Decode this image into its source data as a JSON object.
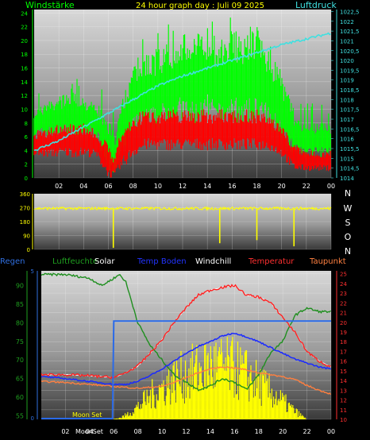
{
  "header": {
    "left_label": "Windstärke",
    "title": "24 hour graph day : Juli 09 2025",
    "right_label": "Luftdruck"
  },
  "legend": [
    {
      "label": "Regen",
      "color": "#2f6fe0"
    },
    {
      "label": "Luftfeuchte",
      "color": "#1f9f1f"
    },
    {
      "label": "Solar",
      "color": "#ffffff"
    },
    {
      "label": "Temp Boden",
      "color": "#2233ff"
    },
    {
      "label": "Windchill",
      "color": "#ffffff"
    },
    {
      "label": "Temperatur",
      "color": "#ff3030"
    },
    {
      "label": "Taupunkt",
      "color": "#ff8040"
    }
  ],
  "compass": [
    "N",
    "W",
    "S",
    "O",
    "N"
  ],
  "annotations": {
    "moon_set": "Moon Set",
    "moon_set_axis": "MoonSet"
  },
  "colors": {
    "gust": "#00ff00",
    "avg_wind": "#ff0000",
    "pressure": "#40e0e0",
    "direction": "#ffff00",
    "humidity": "#1f8f1f",
    "temp": "#ff2020",
    "dew": "#ff7f3f",
    "soil": "#1a2aff",
    "rain": "#2a6ae8",
    "windchill": "#ffffff",
    "solar": "#ffff00"
  },
  "chart_data": [
    {
      "type": "line",
      "title": "24 hour graph day : Juli 09 2025",
      "x_ticks": [
        "02",
        "04",
        "06",
        "08",
        "10",
        "12",
        "14",
        "16",
        "18",
        "20",
        "22",
        "00"
      ],
      "y_left_label": "Windstärke",
      "y_left_ticks": [
        "0",
        "2",
        "4",
        "6",
        "8",
        "10",
        "12",
        "14",
        "16",
        "18",
        "20",
        "22",
        "24"
      ],
      "y_left_range": [
        0,
        24.5
      ],
      "y_right_label": "Luftdruck",
      "y_right_ticks": [
        "1014",
        "1014,5",
        "1015",
        "1015,5",
        "1016",
        "1016,5",
        "1017",
        "1017,5",
        "1018",
        "1018,5",
        "1019",
        "1019,5",
        "1020",
        "1020,5",
        "1021",
        "1021,5",
        "1022",
        "1022,5"
      ],
      "y_right_range": [
        1014,
        1022.6
      ],
      "series": [
        {
          "name": "",
          "axis": "left",
          "color": "#00ff00",
          "kind": "bars",
          "hours": [
            0,
            1,
            2,
            3,
            4,
            5,
            6,
            6.5,
            7,
            8,
            9,
            10,
            11,
            12,
            13,
            14,
            15,
            16,
            17,
            18,
            19,
            20,
            21,
            22,
            23,
            24
          ],
          "low": [
            6,
            6,
            6,
            6,
            6,
            6,
            1,
            0,
            3,
            6,
            7,
            7,
            8,
            8,
            7,
            8,
            7,
            8,
            7,
            8,
            7,
            6,
            3,
            3,
            3,
            3
          ],
          "high": [
            10,
            11,
            12,
            13,
            12,
            11,
            9,
            6,
            12,
            16,
            18,
            19,
            20,
            21,
            21,
            22,
            20,
            22,
            21,
            22,
            19,
            15,
            10,
            8,
            8,
            8
          ]
        },
        {
          "name": "",
          "axis": "left",
          "color": "#ff0000",
          "kind": "bars",
          "hours": [
            0,
            1,
            2,
            3,
            4,
            5,
            6,
            6.5,
            7,
            8,
            9,
            10,
            11,
            12,
            13,
            14,
            15,
            16,
            17,
            18,
            19,
            20,
            21,
            22,
            23,
            24
          ],
          "low": [
            3,
            3,
            3,
            3,
            3,
            3,
            0,
            0,
            1,
            3,
            4,
            4,
            4,
            4,
            4,
            4,
            4,
            4,
            4,
            4,
            4,
            3,
            1,
            1,
            1,
            1
          ],
          "high": [
            7,
            7,
            8,
            8,
            8,
            7,
            5,
            3,
            7,
            9,
            10,
            10,
            10,
            10,
            10,
            10,
            10,
            10,
            10,
            10,
            9,
            8,
            5,
            4,
            4,
            4
          ]
        },
        {
          "name": "",
          "axis": "right",
          "color": "#40e0e0",
          "kind": "line",
          "hours": [
            0,
            2,
            4,
            6,
            8,
            10,
            12,
            14,
            16,
            18,
            20,
            22,
            24
          ],
          "values": [
            1015.4,
            1015.9,
            1016.6,
            1017.3,
            1018.0,
            1018.7,
            1019.2,
            1019.6,
            1020.0,
            1020.4,
            1020.8,
            1021.1,
            1021.4
          ]
        }
      ]
    },
    {
      "type": "scatter",
      "x_ticks": [
        "02",
        "04",
        "06",
        "08",
        "10",
        "12",
        "14",
        "16",
        "18",
        "20",
        "22",
        "00"
      ],
      "y_ticks": [
        "0",
        "90",
        "180",
        "270",
        "360"
      ],
      "y_range": [
        0,
        360
      ],
      "series": [
        {
          "name": "",
          "color": "#ffff00",
          "hours": [
            0,
            1,
            2,
            3,
            4,
            5,
            6,
            6.4,
            6.5,
            7,
            8,
            10,
            12,
            14,
            15,
            16,
            17,
            18,
            19,
            20,
            21,
            22,
            23,
            24
          ],
          "values": [
            255,
            262,
            265,
            270,
            268,
            265,
            262,
            10,
            240,
            262,
            265,
            268,
            265,
            268,
            40,
            268,
            270,
            60,
            268,
            265,
            20,
            270,
            268,
            265
          ]
        }
      ]
    },
    {
      "type": "line",
      "x_ticks": [
        "02",
        "04",
        "06",
        "08",
        "10",
        "12",
        "14",
        "16",
        "18",
        "20",
        "22",
        "00"
      ],
      "y_left_ticks": [
        "55",
        "60",
        "65",
        "70",
        "75",
        "80",
        "85",
        "90"
      ],
      "y_left_range": [
        54,
        94
      ],
      "y_rain_ticks": [
        "0",
        "5"
      ],
      "y_right_ticks": [
        "10",
        "11",
        "12",
        "13",
        "14",
        "15",
        "16",
        "17",
        "18",
        "19",
        "20",
        "21",
        "22",
        "23",
        "24",
        "25"
      ],
      "y_right_range": [
        10,
        25.3
      ],
      "series": [
        {
          "name": "Luftfeuchte",
          "axis": "left",
          "color": "#1f8f1f",
          "hours": [
            0,
            2,
            4,
            5,
            6,
            6.5,
            7,
            8,
            9,
            10,
            11,
            12,
            13,
            14,
            15,
            16,
            17,
            18,
            19,
            20,
            21,
            22,
            23,
            24
          ],
          "values": [
            93,
            93,
            92,
            90,
            92,
            93,
            91,
            80,
            74,
            70,
            66,
            64,
            62,
            63,
            65,
            64,
            62,
            66,
            72,
            75,
            82,
            84,
            83,
            83
          ]
        },
        {
          "name": "Temperatur",
          "axis": "right",
          "color": "#ff2020",
          "hours": [
            0,
            2,
            4,
            5,
            6,
            7,
            8,
            9,
            10,
            11,
            12,
            13,
            14,
            15,
            16,
            17,
            18,
            19,
            20,
            21,
            22,
            23,
            24
          ],
          "values": [
            14.6,
            14.6,
            14.5,
            14.4,
            14.3,
            14.8,
            15.5,
            16.8,
            18.2,
            20.0,
            21.5,
            22.8,
            23.3,
            23.6,
            23.8,
            22.8,
            22.6,
            22.0,
            20.5,
            19.0,
            17.0,
            16.0,
            15.4
          ]
        },
        {
          "name": "Windchill",
          "axis": "right",
          "color": "#ffffff",
          "hours": [
            0,
            2,
            4,
            6,
            7,
            8,
            9,
            10,
            11,
            12,
            13,
            14,
            15,
            16,
            17,
            18,
            19,
            20,
            21,
            22,
            23,
            24
          ],
          "values": [
            14.6,
            14.6,
            14.5,
            14.3,
            14.8,
            15.5,
            16.8,
            18.2,
            20.0,
            21.5,
            22.8,
            23.3,
            23.6,
            23.8,
            22.8,
            22.6,
            22.0,
            20.5,
            19.0,
            17.0,
            16.0,
            15.4
          ]
        },
        {
          "name": "Temp Boden",
          "axis": "right",
          "color": "#1a2aff",
          "hours": [
            0,
            2,
            4,
            6,
            7,
            8,
            9,
            10,
            11,
            12,
            13,
            14,
            15,
            16,
            17,
            18,
            19,
            20,
            21,
            22,
            23,
            24
          ],
          "values": [
            14.4,
            14.2,
            13.9,
            13.6,
            13.6,
            13.9,
            14.5,
            15.2,
            16.0,
            16.8,
            17.5,
            18.0,
            18.6,
            18.9,
            18.5,
            18.0,
            17.4,
            16.8,
            16.2,
            15.8,
            15.4,
            15.2
          ]
        },
        {
          "name": "Taupunkt",
          "axis": "right",
          "color": "#ff7f3f",
          "hours": [
            0,
            2,
            4,
            6,
            7,
            8,
            9,
            10,
            11,
            12,
            13,
            14,
            15,
            16,
            17,
            18,
            19,
            20,
            21,
            22,
            23,
            24
          ],
          "values": [
            13.9,
            13.8,
            13.6,
            13.4,
            13.3,
            13.2,
            13.3,
            13.4,
            13.8,
            14.3,
            14.8,
            15.2,
            15.4,
            15.3,
            15.1,
            14.8,
            14.6,
            14.4,
            14.1,
            13.5,
            13.0,
            12.6
          ]
        },
        {
          "name": "Regen",
          "axis": "rain",
          "color": "#2a6ae8",
          "hours": [
            0,
            5.9,
            6.0,
            24
          ],
          "values": [
            0,
            0,
            5,
            5
          ]
        },
        {
          "name": "Solar",
          "axis": "right",
          "color": "#ffff00",
          "kind": "area",
          "hours": [
            0,
            5.8,
            6.5,
            7,
            8,
            9,
            10,
            11,
            12,
            13,
            14,
            15,
            16,
            17,
            18,
            19,
            20,
            21,
            22,
            24
          ],
          "values": [
            10,
            10,
            10.2,
            10.6,
            11.8,
            13.4,
            14.6,
            15.8,
            16.4,
            17.2,
            17.8,
            17.6,
            17.4,
            16.5,
            15.2,
            14.0,
            12.6,
            11.2,
            10,
            10
          ]
        }
      ]
    }
  ]
}
